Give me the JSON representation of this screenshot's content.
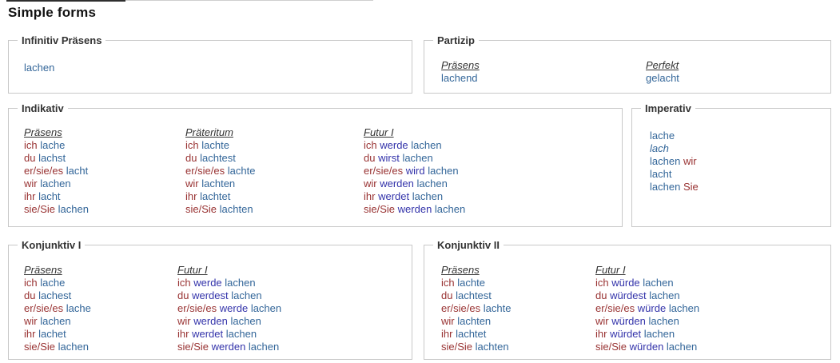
{
  "title": "Simple forms",
  "verb": "lachen",
  "colors": {
    "pronoun": "#993333",
    "verb_form": "#336699",
    "auxiliary": "#3333aa",
    "box_border": "#c8c8c8",
    "heading_text": "#333333"
  },
  "sections": [
    {
      "id": "infinitiv",
      "legend": "Infinitiv Präsens",
      "columns": [
        {
          "header": null,
          "lines": [
            [
              [
                "lachen",
                "v"
              ]
            ]
          ]
        }
      ]
    },
    {
      "id": "partizip",
      "legend": "Partizip",
      "columns": [
        {
          "header": "Präsens",
          "lines": [
            [
              [
                "lachend",
                "v"
              ]
            ]
          ]
        },
        {
          "header": "Perfekt",
          "lines": [
            [
              [
                "gelacht",
                "v"
              ]
            ]
          ]
        }
      ]
    },
    {
      "id": "indikativ",
      "legend": "Indikativ",
      "columns": [
        {
          "header": "Präsens",
          "lines": [
            [
              [
                "ich",
                "p"
              ],
              [
                "lache",
                "v"
              ]
            ],
            [
              [
                "du",
                "p"
              ],
              [
                "lachst",
                "v"
              ]
            ],
            [
              [
                "er/sie/es",
                "p"
              ],
              [
                "lacht",
                "v"
              ]
            ],
            [
              [
                "wir",
                "p"
              ],
              [
                "lachen",
                "v"
              ]
            ],
            [
              [
                "ihr",
                "p"
              ],
              [
                "lacht",
                "v"
              ]
            ],
            [
              [
                "sie/Sie",
                "p"
              ],
              [
                "lachen",
                "v"
              ]
            ]
          ]
        },
        {
          "header": "Präteritum",
          "lines": [
            [
              [
                "ich",
                "p"
              ],
              [
                "lachte",
                "v"
              ]
            ],
            [
              [
                "du",
                "p"
              ],
              [
                "lachtest",
                "v"
              ]
            ],
            [
              [
                "er/sie/es",
                "p"
              ],
              [
                "lachte",
                "v"
              ]
            ],
            [
              [
                "wir",
                "p"
              ],
              [
                "lachten",
                "v"
              ]
            ],
            [
              [
                "ihr",
                "p"
              ],
              [
                "lachtet",
                "v"
              ]
            ],
            [
              [
                "sie/Sie",
                "p"
              ],
              [
                "lachten",
                "v"
              ]
            ]
          ]
        },
        {
          "header": "Futur I",
          "lines": [
            [
              [
                "ich",
                "p"
              ],
              [
                "werde",
                "a"
              ],
              [
                "lachen",
                "v"
              ]
            ],
            [
              [
                "du",
                "p"
              ],
              [
                "wirst",
                "a"
              ],
              [
                "lachen",
                "v"
              ]
            ],
            [
              [
                "er/sie/es",
                "p"
              ],
              [
                "wird",
                "a"
              ],
              [
                "lachen",
                "v"
              ]
            ],
            [
              [
                "wir",
                "p"
              ],
              [
                "werden",
                "a"
              ],
              [
                "lachen",
                "v"
              ]
            ],
            [
              [
                "ihr",
                "p"
              ],
              [
                "werdet",
                "a"
              ],
              [
                "lachen",
                "v"
              ]
            ],
            [
              [
                "sie/Sie",
                "p"
              ],
              [
                "werden",
                "a"
              ],
              [
                "lachen",
                "v"
              ]
            ]
          ]
        }
      ]
    },
    {
      "id": "imperativ",
      "legend": "Imperativ",
      "columns": [
        {
          "header": null,
          "lines": [
            [
              [
                "lache",
                "v"
              ]
            ],
            [
              [
                "lach",
                "vi"
              ]
            ],
            [
              [
                "lachen",
                "v"
              ],
              [
                "wir",
                "p"
              ]
            ],
            [
              [
                "lacht",
                "v"
              ]
            ],
            [
              [
                "lachen",
                "v"
              ],
              [
                "Sie",
                "p"
              ]
            ]
          ]
        }
      ]
    },
    {
      "id": "konjunktiv1",
      "legend": "Konjunktiv I",
      "columns": [
        {
          "header": "Präsens",
          "lines": [
            [
              [
                "ich",
                "p"
              ],
              [
                "lache",
                "v"
              ]
            ],
            [
              [
                "du",
                "p"
              ],
              [
                "lachest",
                "v"
              ]
            ],
            [
              [
                "er/sie/es",
                "p"
              ],
              [
                "lache",
                "v"
              ]
            ],
            [
              [
                "wir",
                "p"
              ],
              [
                "lachen",
                "v"
              ]
            ],
            [
              [
                "ihr",
                "p"
              ],
              [
                "lachet",
                "v"
              ]
            ],
            [
              [
                "sie/Sie",
                "p"
              ],
              [
                "lachen",
                "v"
              ]
            ]
          ]
        },
        {
          "header": "Futur I",
          "lines": [
            [
              [
                "ich",
                "p"
              ],
              [
                "werde",
                "a"
              ],
              [
                "lachen",
                "v"
              ]
            ],
            [
              [
                "du",
                "p"
              ],
              [
                "werdest",
                "a"
              ],
              [
                "lachen",
                "v"
              ]
            ],
            [
              [
                "er/sie/es",
                "p"
              ],
              [
                "werde",
                "a"
              ],
              [
                "lachen",
                "v"
              ]
            ],
            [
              [
                "wir",
                "p"
              ],
              [
                "werden",
                "a"
              ],
              [
                "lachen",
                "v"
              ]
            ],
            [
              [
                "ihr",
                "p"
              ],
              [
                "werdet",
                "a"
              ],
              [
                "lachen",
                "v"
              ]
            ],
            [
              [
                "sie/Sie",
                "p"
              ],
              [
                "werden",
                "a"
              ],
              [
                "lachen",
                "v"
              ]
            ]
          ]
        }
      ]
    },
    {
      "id": "konjunktiv2",
      "legend": "Konjunktiv II",
      "columns": [
        {
          "header": "Präsens",
          "lines": [
            [
              [
                "ich",
                "p"
              ],
              [
                "lachte",
                "v"
              ]
            ],
            [
              [
                "du",
                "p"
              ],
              [
                "lachtest",
                "v"
              ]
            ],
            [
              [
                "er/sie/es",
                "p"
              ],
              [
                "lachte",
                "v"
              ]
            ],
            [
              [
                "wir",
                "p"
              ],
              [
                "lachten",
                "v"
              ]
            ],
            [
              [
                "ihr",
                "p"
              ],
              [
                "lachtet",
                "v"
              ]
            ],
            [
              [
                "sie/Sie",
                "p"
              ],
              [
                "lachten",
                "v"
              ]
            ]
          ]
        },
        {
          "header": "Futur I",
          "lines": [
            [
              [
                "ich",
                "p"
              ],
              [
                "würde",
                "a"
              ],
              [
                "lachen",
                "v"
              ]
            ],
            [
              [
                "du",
                "p"
              ],
              [
                "würdest",
                "a"
              ],
              [
                "lachen",
                "v"
              ]
            ],
            [
              [
                "er/sie/es",
                "p"
              ],
              [
                "würde",
                "a"
              ],
              [
                "lachen",
                "v"
              ]
            ],
            [
              [
                "wir",
                "p"
              ],
              [
                "würden",
                "a"
              ],
              [
                "lachen",
                "v"
              ]
            ],
            [
              [
                "ihr",
                "p"
              ],
              [
                "würdet",
                "a"
              ],
              [
                "lachen",
                "v"
              ]
            ],
            [
              [
                "sie/Sie",
                "p"
              ],
              [
                "würden",
                "a"
              ],
              [
                "lachen",
                "v"
              ]
            ]
          ]
        }
      ]
    }
  ]
}
